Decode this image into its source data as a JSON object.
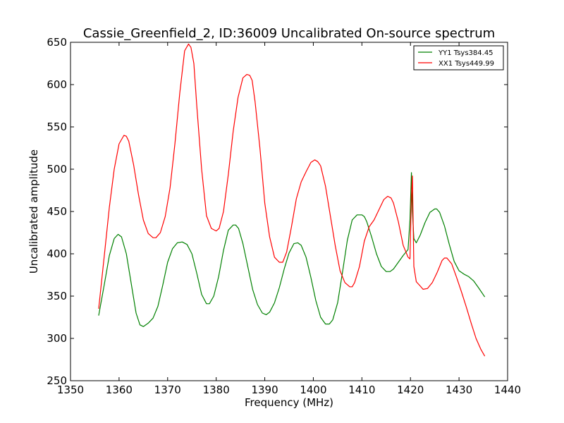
{
  "chart_data": {
    "type": "line",
    "title": "Cassie_Greenfield_2, ID:36009 Uncalibrated On-source spectrum",
    "xlabel": "Frequency (MHz)",
    "ylabel": "Uncalibrated amplitude",
    "xlim": [
      1350,
      1440
    ],
    "ylim": [
      250,
      650
    ],
    "xticks": [
      1350,
      1360,
      1370,
      1380,
      1390,
      1400,
      1410,
      1420,
      1430,
      1440
    ],
    "yticks": [
      250,
      300,
      350,
      400,
      450,
      500,
      550,
      600,
      650
    ],
    "grid": false,
    "legend_position": "top-right",
    "series": [
      {
        "name": "YY1 Tsys384.45",
        "color": "#008000",
        "x": [
          1355.8,
          1357.0,
          1358.0,
          1359.0,
          1359.8,
          1360.5,
          1361.5,
          1362.5,
          1363.5,
          1364.3,
          1365.0,
          1366.0,
          1367.0,
          1368.0,
          1369.0,
          1370.0,
          1371.0,
          1372.0,
          1373.0,
          1374.0,
          1375.0,
          1376.0,
          1377.0,
          1378.0,
          1378.6,
          1379.5,
          1380.5,
          1381.5,
          1382.5,
          1383.5,
          1384.0,
          1384.6,
          1385.5,
          1386.5,
          1387.5,
          1388.5,
          1389.5,
          1390.3,
          1391.0,
          1392.0,
          1393.0,
          1394.0,
          1395.0,
          1396.0,
          1396.8,
          1397.5,
          1398.5,
          1399.5,
          1400.5,
          1401.5,
          1402.5,
          1403.3,
          1404.0,
          1405.0,
          1406.0,
          1407.0,
          1408.0,
          1409.0,
          1410.0,
          1410.5,
          1411.0,
          1412.0,
          1413.0,
          1414.0,
          1415.0,
          1415.8,
          1416.5,
          1417.5,
          1418.5,
          1419.5,
          1419.9,
          1420.2,
          1420.4,
          1420.7,
          1421.2,
          1422.0,
          1423.0,
          1424.0,
          1425.0,
          1425.4,
          1426.0,
          1427.0,
          1428.0,
          1429.0,
          1430.0,
          1431.0,
          1432.0,
          1433.0,
          1434.0,
          1435.3
        ],
        "values": [
          327,
          365,
          398,
          418,
          423,
          420,
          400,
          365,
          330,
          316,
          314,
          318,
          324,
          338,
          363,
          390,
          406,
          413,
          414,
          411,
          400,
          377,
          352,
          341,
          341,
          350,
          373,
          404,
          428,
          434,
          434,
          430,
          412,
          385,
          358,
          340,
          330,
          328,
          331,
          342,
          360,
          382,
          401,
          412,
          413,
          410,
          396,
          372,
          345,
          325,
          317,
          317,
          322,
          342,
          378,
          416,
          440,
          446,
          446,
          444,
          438,
          420,
          400,
          385,
          379,
          379,
          382,
          390,
          398,
          405,
          440,
          496,
          450,
          418,
          413,
          422,
          437,
          449,
          453,
          453,
          449,
          433,
          411,
          391,
          380,
          376,
          373,
          368,
          360,
          349
        ]
      },
      {
        "name": "XX1 Tsys449.99",
        "color": "#ff0000",
        "x": [
          1355.8,
          1357.0,
          1358.0,
          1359.0,
          1360.0,
          1361.0,
          1361.5,
          1362.0,
          1363.0,
          1364.0,
          1365.0,
          1366.0,
          1367.0,
          1367.6,
          1368.5,
          1369.5,
          1370.5,
          1371.5,
          1372.5,
          1373.5,
          1374.3,
          1374.8,
          1375.4,
          1376.0,
          1377.0,
          1378.0,
          1379.0,
          1380.0,
          1380.6,
          1381.5,
          1382.5,
          1383.5,
          1384.5,
          1385.5,
          1386.3,
          1386.9,
          1387.4,
          1388.0,
          1389.0,
          1390.0,
          1391.0,
          1392.0,
          1393.0,
          1393.7,
          1394.5,
          1395.5,
          1396.5,
          1397.5,
          1398.5,
          1399.5,
          1400.3,
          1400.9,
          1401.5,
          1402.5,
          1403.5,
          1404.5,
          1405.5,
          1406.5,
          1407.5,
          1408.0,
          1408.5,
          1409.5,
          1410.5,
          1411.5,
          1412.5,
          1413.5,
          1414.5,
          1415.3,
          1416.0,
          1416.5,
          1417.5,
          1418.5,
          1419.5,
          1419.9,
          1420.2,
          1420.4,
          1420.7,
          1421.2,
          1422.0,
          1422.6,
          1423.5,
          1424.5,
          1425.5,
          1426.5,
          1427.0,
          1427.5,
          1428.5,
          1429.5,
          1430.5,
          1431.5,
          1432.5,
          1433.5,
          1434.5,
          1435.3
        ],
        "values": [
          335,
          400,
          455,
          500,
          530,
          540,
          539,
          533,
          505,
          470,
          440,
          424,
          419,
          419,
          425,
          444,
          478,
          530,
          590,
          640,
          648,
          644,
          625,
          575,
          500,
          445,
          430,
          427,
          430,
          450,
          494,
          545,
          585,
          608,
          612,
          611,
          605,
          580,
          525,
          460,
          420,
          396,
          390,
          390,
          402,
          432,
          465,
          485,
          497,
          508,
          511,
          509,
          504,
          480,
          445,
          410,
          380,
          366,
          361,
          361,
          366,
          385,
          415,
          432,
          440,
          452,
          464,
          468,
          466,
          460,
          438,
          410,
          396,
          394,
          470,
          492,
          385,
          367,
          362,
          358,
          359,
          366,
          378,
          392,
          395,
          395,
          388,
          372,
          355,
          337,
          318,
          300,
          287,
          279
        ]
      }
    ]
  }
}
